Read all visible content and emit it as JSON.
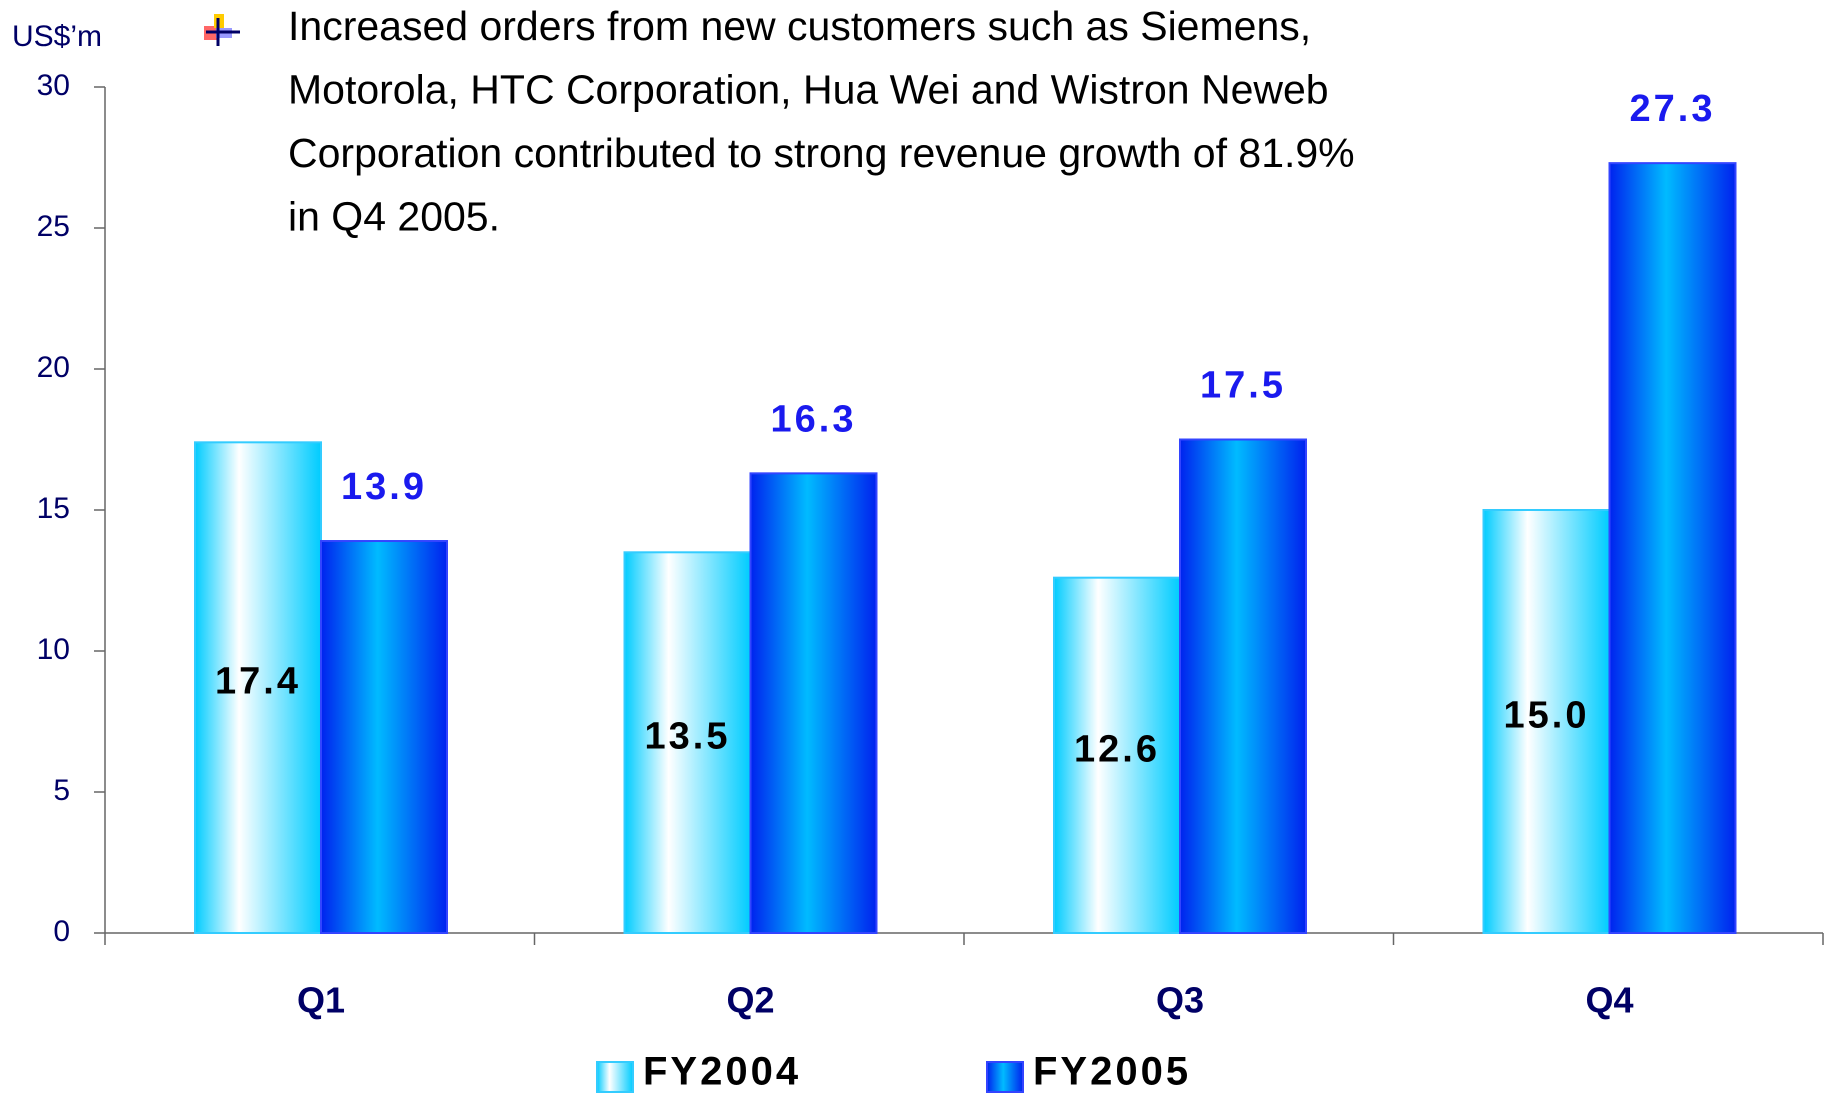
{
  "chart_data": {
    "type": "bar",
    "unit_label": "US$’m",
    "annotation": [
      "Increased orders from new customers such as Siemens,",
      "Motorola, HTC Corporation, Hua Wei and Wistron Neweb",
      "Corporation contributed to  strong revenue growth of 81.9%",
      "in Q4 2005."
    ],
    "categories": [
      "Q1",
      "Q2",
      "Q3",
      "Q4"
    ],
    "series": [
      {
        "name": "FY2004",
        "color": "#00ccff",
        "values": [
          17.4,
          13.5,
          12.6,
          15
        ],
        "value_labels": [
          "17.4",
          "13.5",
          "12.6",
          "15.0"
        ]
      },
      {
        "name": "FY2005",
        "color": "#0022ee",
        "values": [
          13.9,
          16.3,
          17.5,
          27.3
        ],
        "value_labels": [
          "13.9",
          "16.3",
          "17.5",
          "27.3"
        ]
      }
    ],
    "ylim": [
      0,
      30
    ],
    "yticks": [
      0,
      5,
      10,
      15,
      20,
      25,
      30
    ]
  }
}
